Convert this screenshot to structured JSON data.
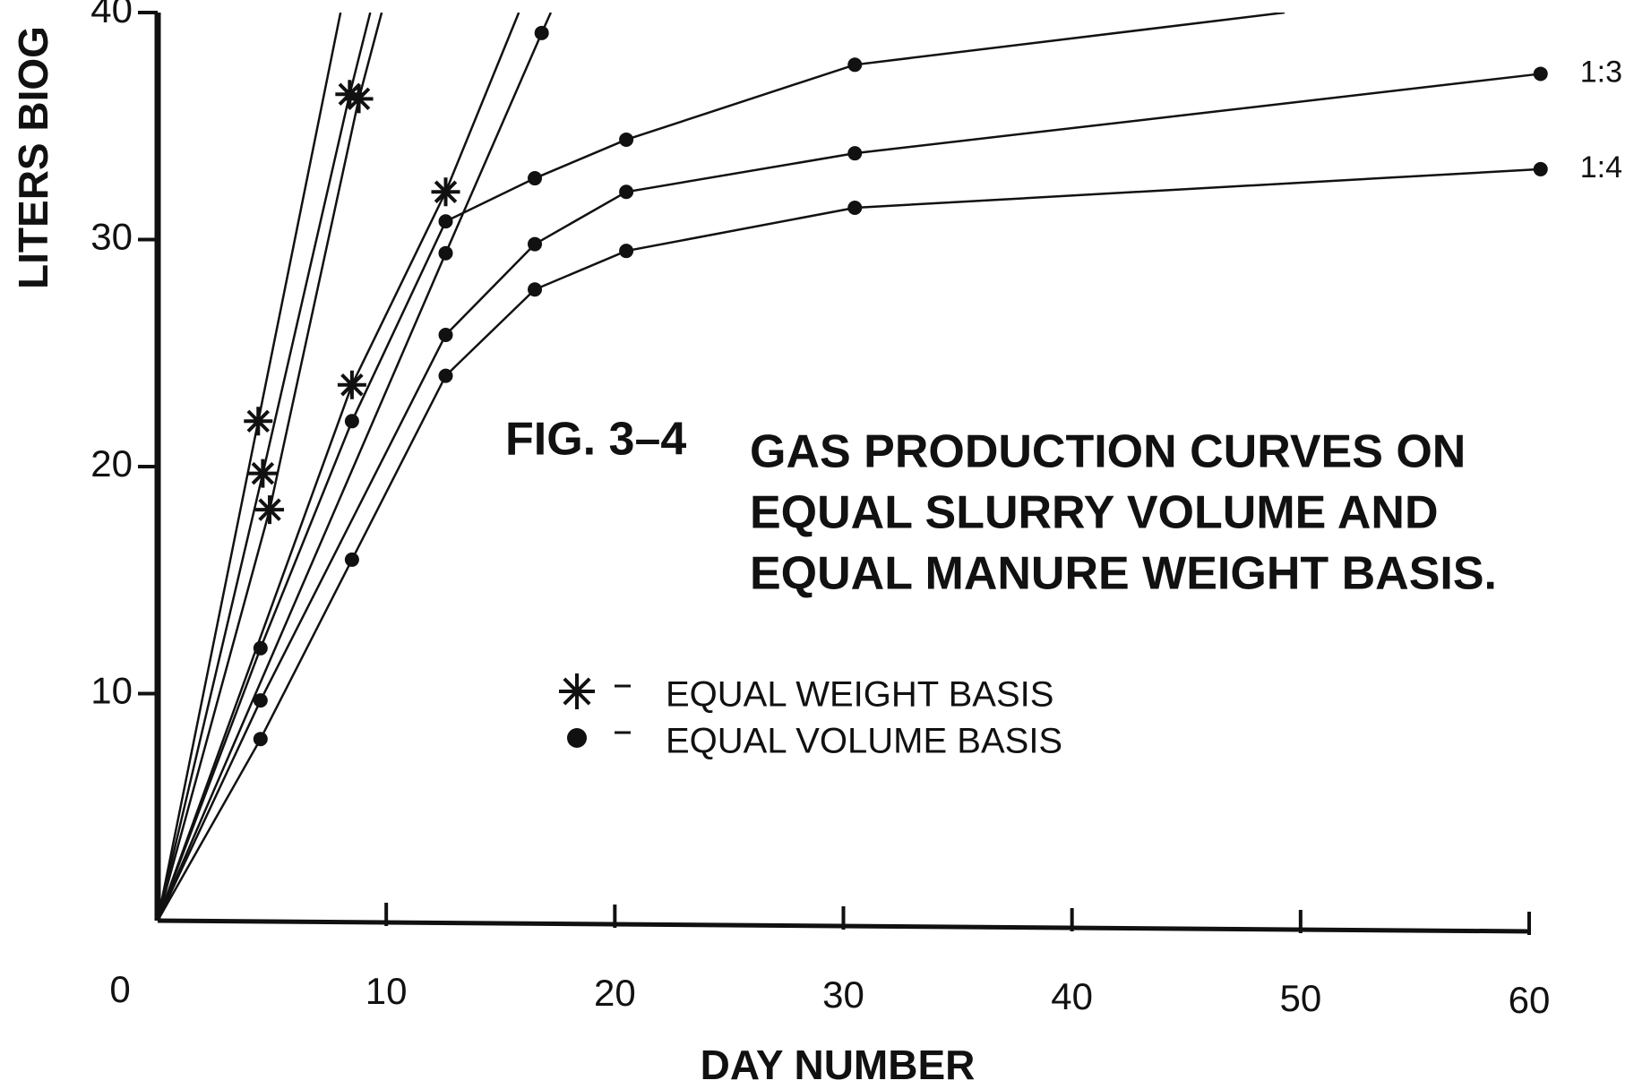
{
  "chart_data": {
    "type": "line",
    "figure_label": "FIG. 3–4",
    "title": [
      "GAS PRODUCTION CURVES ON",
      "EQUAL SLURRY VOLUME AND",
      "EQUAL MANURE WEIGHT BASIS."
    ],
    "x_label": "DAY NUMBER",
    "y_label": "LITERS BIOG",
    "xlim": [
      0,
      60
    ],
    "ylim": [
      0,
      40
    ],
    "xticks": [
      0,
      10,
      20,
      30,
      40,
      50,
      60
    ],
    "yticks": [
      10,
      20,
      30,
      40
    ],
    "color": "#111111",
    "legend": [
      {
        "marker": "star",
        "label": "EQUAL WEIGHT BASIS"
      },
      {
        "marker": "dot",
        "label": "EQUAL VOLUME BASIS"
      }
    ],
    "series": [
      {
        "marker": "star",
        "x": [
          0,
          4.4,
          8
        ],
        "values": [
          0,
          22,
          40
        ],
        "markers": [
          false,
          true,
          false
        ]
      },
      {
        "marker": "star",
        "x": [
          0,
          4.6,
          8.4,
          9.3
        ],
        "values": [
          0,
          19.7,
          36.4,
          40
        ],
        "markers": [
          false,
          true,
          true,
          false
        ]
      },
      {
        "marker": "star",
        "x": [
          0,
          4.9,
          8.8,
          9.8
        ],
        "values": [
          0,
          18.1,
          36.2,
          40
        ],
        "markers": [
          false,
          true,
          true,
          false
        ]
      },
      {
        "marker": "star",
        "x": [
          0,
          8.5,
          12.6,
          15.8
        ],
        "values": [
          0,
          23.6,
          32.1,
          40
        ],
        "markers": [
          false,
          true,
          true,
          false
        ]
      },
      {
        "marker": "dot",
        "x": [
          0,
          12.6,
          16.8,
          17.2
        ],
        "values": [
          0,
          29.4,
          39.1,
          40
        ],
        "markers": [
          false,
          true,
          true,
          false
        ]
      },
      {
        "marker": "dot",
        "x": [
          0,
          4.5,
          8.5,
          12.6,
          16.5,
          20.5,
          30.5,
          49.3
        ],
        "values": [
          0,
          12,
          22,
          30.8,
          32.7,
          34.4,
          37.7,
          40
        ],
        "markers": [
          false,
          true,
          true,
          true,
          true,
          true,
          true,
          false
        ]
      },
      {
        "marker": "dot",
        "label": "1:3",
        "x": [
          0,
          4.5,
          12.6,
          16.5,
          20.5,
          30.5,
          60.5
        ],
        "values": [
          0,
          9.7,
          25.8,
          29.8,
          32.1,
          33.8,
          37.3
        ],
        "markers": [
          false,
          true,
          true,
          true,
          true,
          true,
          true
        ]
      },
      {
        "marker": "dot",
        "label": "1:4",
        "x": [
          0,
          4.5,
          8.5,
          12.6,
          16.5,
          20.5,
          30.5,
          60.5
        ],
        "values": [
          0,
          8,
          15.9,
          24,
          27.8,
          29.5,
          31.4,
          33.1
        ],
        "markers": [
          false,
          true,
          true,
          true,
          true,
          true,
          true,
          true
        ]
      }
    ]
  }
}
